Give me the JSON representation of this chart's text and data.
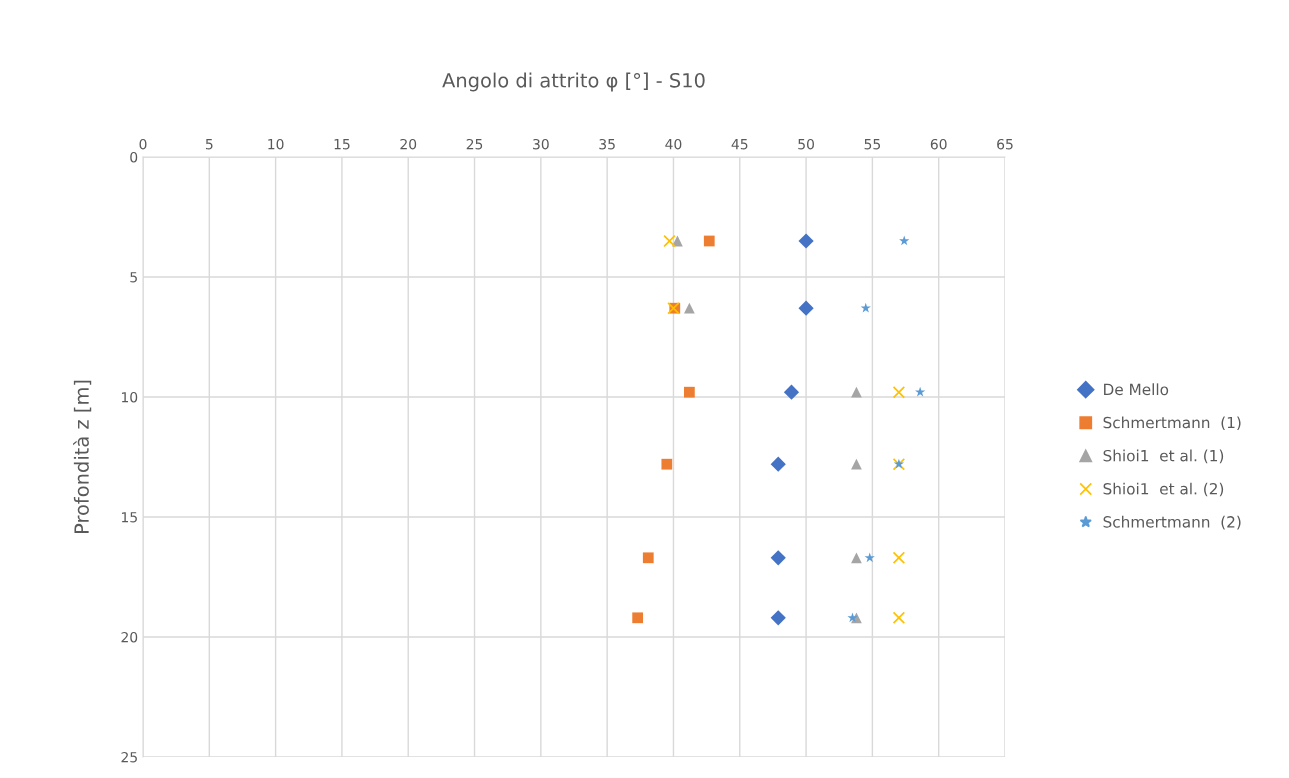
{
  "chart_data": {
    "type": "scatter",
    "title": "Angolo di attrito φ [°] - S10",
    "ylabel": "Profondità z [m]",
    "xlim": [
      0,
      65
    ],
    "xticks": [
      0,
      5,
      10,
      15,
      20,
      25,
      30,
      35,
      40,
      45,
      50,
      55,
      60,
      65
    ],
    "ylim": [
      25,
      0
    ],
    "yticks": [
      0,
      5,
      10,
      15,
      20,
      25
    ],
    "grid": true,
    "legend": "right",
    "series": [
      {
        "name": "De Mello",
        "color": "#4472c4",
        "marker": "diamond",
        "x": [
          50.0,
          50.0,
          48.9,
          47.9,
          47.9,
          47.9
        ],
        "values": [
          3.5,
          6.3,
          9.8,
          12.8,
          16.7,
          19.2
        ]
      },
      {
        "name": "Schmertmann  (1)",
        "color": "#ed7d31",
        "marker": "square",
        "x": [
          42.7,
          40.1,
          41.2,
          39.5,
          38.1,
          37.3
        ],
        "values": [
          3.5,
          6.3,
          9.8,
          12.8,
          16.7,
          19.2
        ]
      },
      {
        "name": "Shioi1  et al. (1)",
        "color": "#a5a5a5",
        "marker": "triangle",
        "x": [
          40.3,
          41.2,
          53.8,
          53.8,
          53.8,
          53.8
        ],
        "values": [
          3.5,
          6.3,
          9.8,
          12.8,
          16.7,
          19.2
        ]
      },
      {
        "name": "Shioi1  et al. (2)",
        "color": "#ffc000",
        "marker": "cross",
        "x": [
          39.7,
          40.0,
          57.0,
          57.0,
          57.0,
          57.0
        ],
        "values": [
          3.5,
          6.3,
          9.8,
          12.8,
          16.7,
          19.2
        ]
      },
      {
        "name": "Schmertmann  (2)",
        "color": "#5b9bd5",
        "marker": "star",
        "x": [
          57.4,
          54.5,
          58.6,
          57.0,
          54.8,
          53.5
        ],
        "values": [
          3.5,
          6.3,
          9.8,
          12.8,
          16.7,
          19.2
        ]
      }
    ]
  }
}
